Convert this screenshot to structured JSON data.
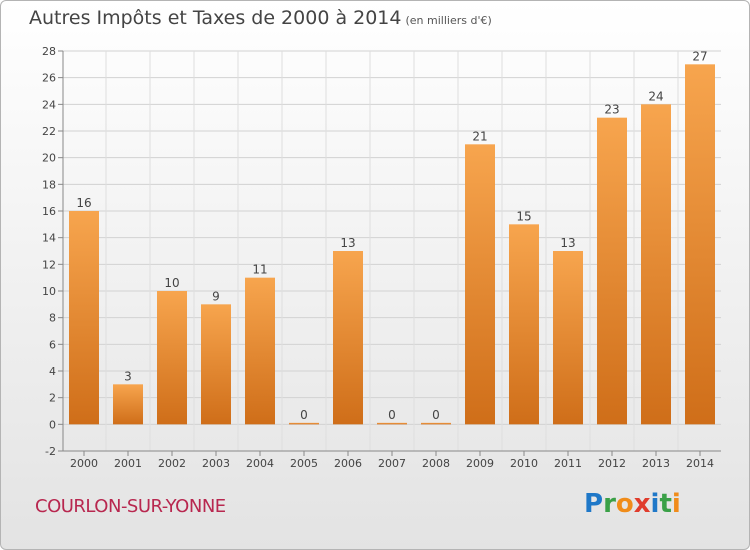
{
  "header": {
    "title": "Autres Impôts et Taxes de 2000 à 2014",
    "unit": "(en milliers d'€)"
  },
  "footer": {
    "town": "COURLON-SUR-YONNE",
    "logo_letters": [
      "P",
      "r",
      "o",
      "x",
      "i",
      "t",
      "i"
    ]
  },
  "colors": {
    "bar_light": "#f7a54e",
    "bar_dark": "#cf6e19",
    "town": "#b8274f"
  },
  "chart_data": {
    "type": "bar",
    "categories": [
      "2000",
      "2001",
      "2002",
      "2003",
      "2004",
      "2005",
      "2006",
      "2007",
      "2008",
      "2009",
      "2010",
      "2011",
      "2012",
      "2013",
      "2014"
    ],
    "values": [
      16,
      3,
      10,
      9,
      11,
      0,
      13,
      0,
      0,
      21,
      15,
      13,
      23,
      24,
      27
    ],
    "ylim": [
      -2,
      28
    ],
    "yticks": [
      -2,
      0,
      2,
      4,
      6,
      8,
      10,
      12,
      14,
      16,
      18,
      20,
      22,
      24,
      26,
      28
    ],
    "grid": true,
    "data_labels": true
  }
}
